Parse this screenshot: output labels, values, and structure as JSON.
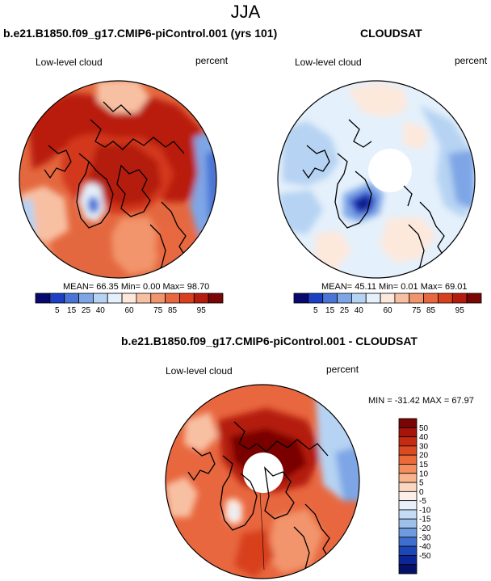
{
  "page": {
    "season": "JJA"
  },
  "panels": [
    {
      "title": "b.e21.B1850.f09_g17.CMIP6-piControl.001 (yrs 101)",
      "variable": "Low-level cloud",
      "units": "percent",
      "mean": "66.35",
      "min": "0.00",
      "max": "98.70",
      "stats_text": "MEAN= 66.35  Min=  0.00  Max= 98.70"
    },
    {
      "title": "CLOUDSAT",
      "variable": "Low-level cloud",
      "units": "percent",
      "mean": "45.11",
      "min": "0.01",
      "max": "69.01",
      "stats_text": "MEAN= 45.11  Min=  0.01  Max= 69.01"
    },
    {
      "title": "b.e21.B1850.f09_g17.CMIP6-piControl.001 - CLOUDSAT",
      "variable": "Low-level cloud",
      "units": "percent",
      "min": "-31.42",
      "max": "67.97",
      "stats_text": "MIN = -31.42 MAX =  67.97"
    }
  ],
  "chart_data": [
    {
      "type": "heatmap",
      "projection": "north polar stereographic",
      "title": "b.e21.B1850.f09_g17.CMIP6-piControl.001 (yrs 101)",
      "variable": "Low-level cloud",
      "units": "percent",
      "mean": 66.35,
      "min": 0.0,
      "max": 98.7,
      "colorbar_ticks": [
        "5",
        "15",
        "25",
        "40",
        "60",
        "75",
        "85",
        "95"
      ],
      "colorbar_colors": [
        "#08086e",
        "#1d3fc4",
        "#4a74d6",
        "#7ea6e6",
        "#b6d3f3",
        "#e4f0fb",
        "#fde8dc",
        "#f8c0a2",
        "#f2946c",
        "#e8673f",
        "#d8401e",
        "#b41d0e",
        "#7a0505"
      ]
    },
    {
      "type": "heatmap",
      "projection": "north polar stereographic",
      "title": "CLOUDSAT",
      "variable": "Low-level cloud",
      "units": "percent",
      "mean": 45.11,
      "min": 0.01,
      "max": 69.01,
      "colorbar_ticks": [
        "5",
        "15",
        "25",
        "40",
        "60",
        "75",
        "85",
        "95"
      ],
      "colorbar_colors": [
        "#08086e",
        "#1d3fc4",
        "#4a74d6",
        "#7ea6e6",
        "#b6d3f3",
        "#e4f0fb",
        "#fde8dc",
        "#f8c0a2",
        "#f2946c",
        "#e8673f",
        "#d8401e",
        "#b41d0e",
        "#7a0505"
      ]
    },
    {
      "type": "heatmap",
      "projection": "north polar stereographic",
      "title": "b.e21.B1850.f09_g17.CMIP6-piControl.001 - CLOUDSAT",
      "variable": "Low-level cloud",
      "units": "percent",
      "min": -31.42,
      "max": 67.97,
      "colorbar_ticks": [
        "50",
        "40",
        "30",
        "20",
        "15",
        "10",
        "5",
        "0",
        "-5",
        "-10",
        "-15",
        "-20",
        "-30",
        "-40",
        "-50"
      ],
      "colorbar_colors": [
        "#7a0505",
        "#a6150b",
        "#c52a12",
        "#dc4a22",
        "#ec6a3a",
        "#f48e5e",
        "#f8b48c",
        "#fbd6c0",
        "#fdf0e8",
        "#e8f1fb",
        "#c6dcf4",
        "#9dc0ec",
        "#6e9be0",
        "#3e6fd0",
        "#1d47b8",
        "#0c2698",
        "#06106a"
      ]
    }
  ]
}
